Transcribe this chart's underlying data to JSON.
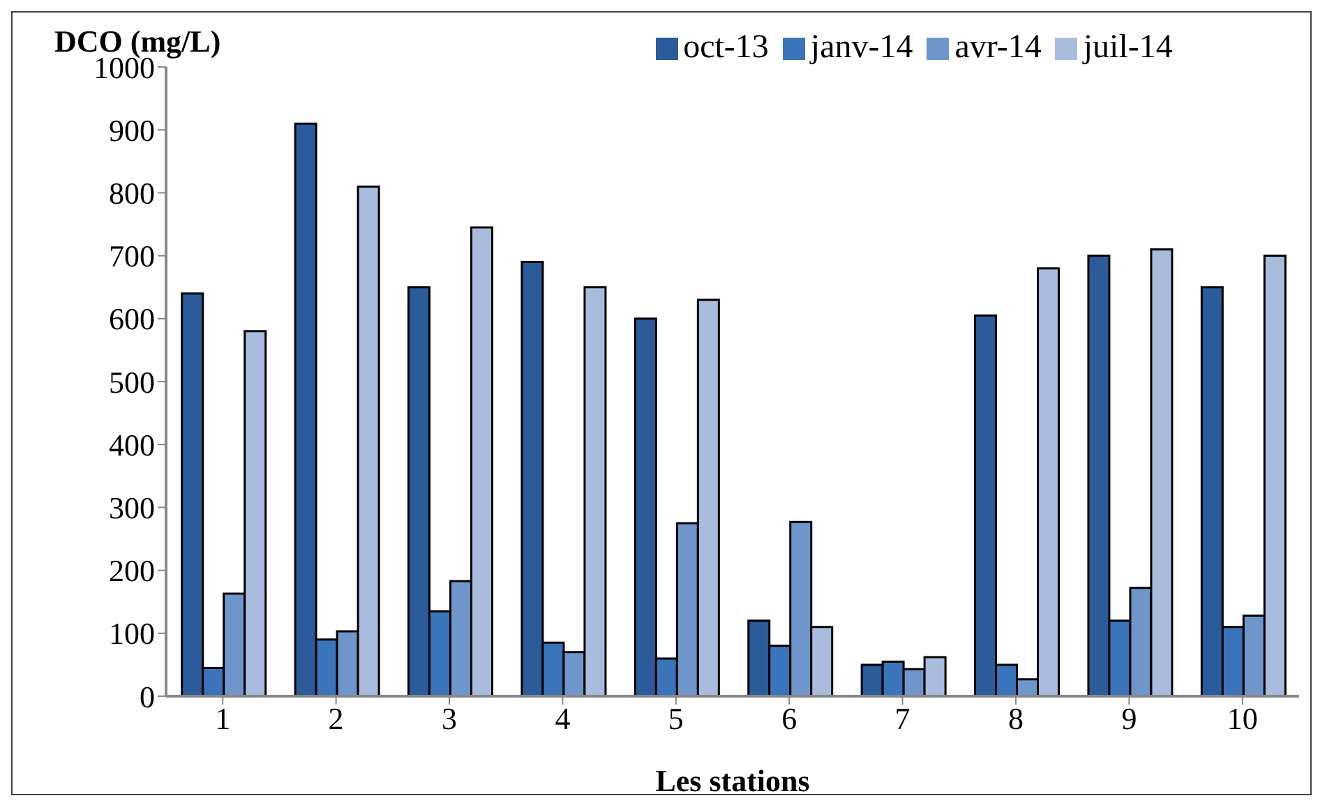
{
  "chart_data": {
    "type": "bar",
    "ylabel": "DCO (mg/L)",
    "xlabel": "Les stations",
    "categories": [
      "1",
      "2",
      "3",
      "4",
      "5",
      "6",
      "7",
      "8",
      "9",
      "10"
    ],
    "series": [
      {
        "name": "oct-13",
        "color": "#2b5b9a",
        "values": [
          640,
          910,
          650,
          690,
          600,
          120,
          50,
          605,
          700,
          650
        ]
      },
      {
        "name": "janv-14",
        "color": "#3a74ba",
        "values": [
          45,
          90,
          135,
          85,
          60,
          80,
          55,
          50,
          120,
          110
        ]
      },
      {
        "name": "avr-14",
        "color": "#6f96cb",
        "values": [
          163,
          103,
          183,
          70,
          275,
          277,
          43,
          27,
          172,
          128
        ]
      },
      {
        "name": "juil-14",
        "color": "#a9bcdd",
        "values": [
          580,
          810,
          745,
          650,
          630,
          110,
          62,
          680,
          710,
          700
        ]
      }
    ],
    "ylim": [
      0,
      1000
    ],
    "yticks": [
      0,
      100,
      200,
      300,
      400,
      500,
      600,
      700,
      800,
      900,
      1000
    ],
    "grid": false,
    "legend": "top"
  }
}
